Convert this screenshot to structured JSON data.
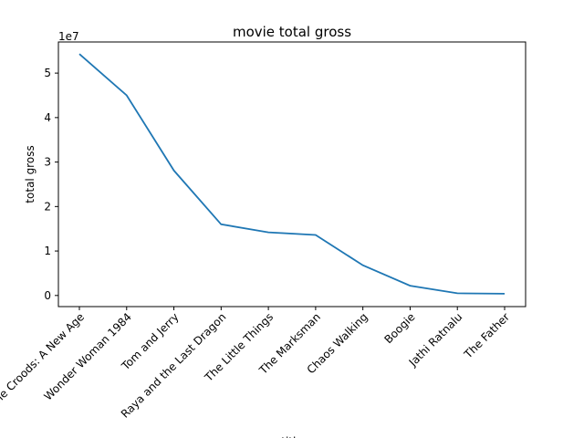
{
  "chart_data": {
    "type": "line",
    "title": "movie total gross",
    "xlabel": "title",
    "ylabel": "total gross",
    "offset_label": "1e7",
    "categories": [
      "The Croods: A New Age",
      "Wonder Woman 1984",
      "Tom and Jerry",
      "Raya and the Last Dragon",
      "The Little Things",
      "The Marksman",
      "Chaos Walking",
      "Boogie",
      "Jathi Ratnalu",
      "The Father"
    ],
    "values": [
      54300000,
      45000000,
      28100000,
      16000000,
      14200000,
      13600000,
      6800000,
      2200000,
      500000,
      400000
    ],
    "yticks": [
      0,
      1,
      2,
      3,
      4,
      5
    ],
    "ylim": [
      -2500000,
      57000000
    ],
    "line_color": "#1f77b4",
    "grid": false,
    "legend": "none"
  }
}
